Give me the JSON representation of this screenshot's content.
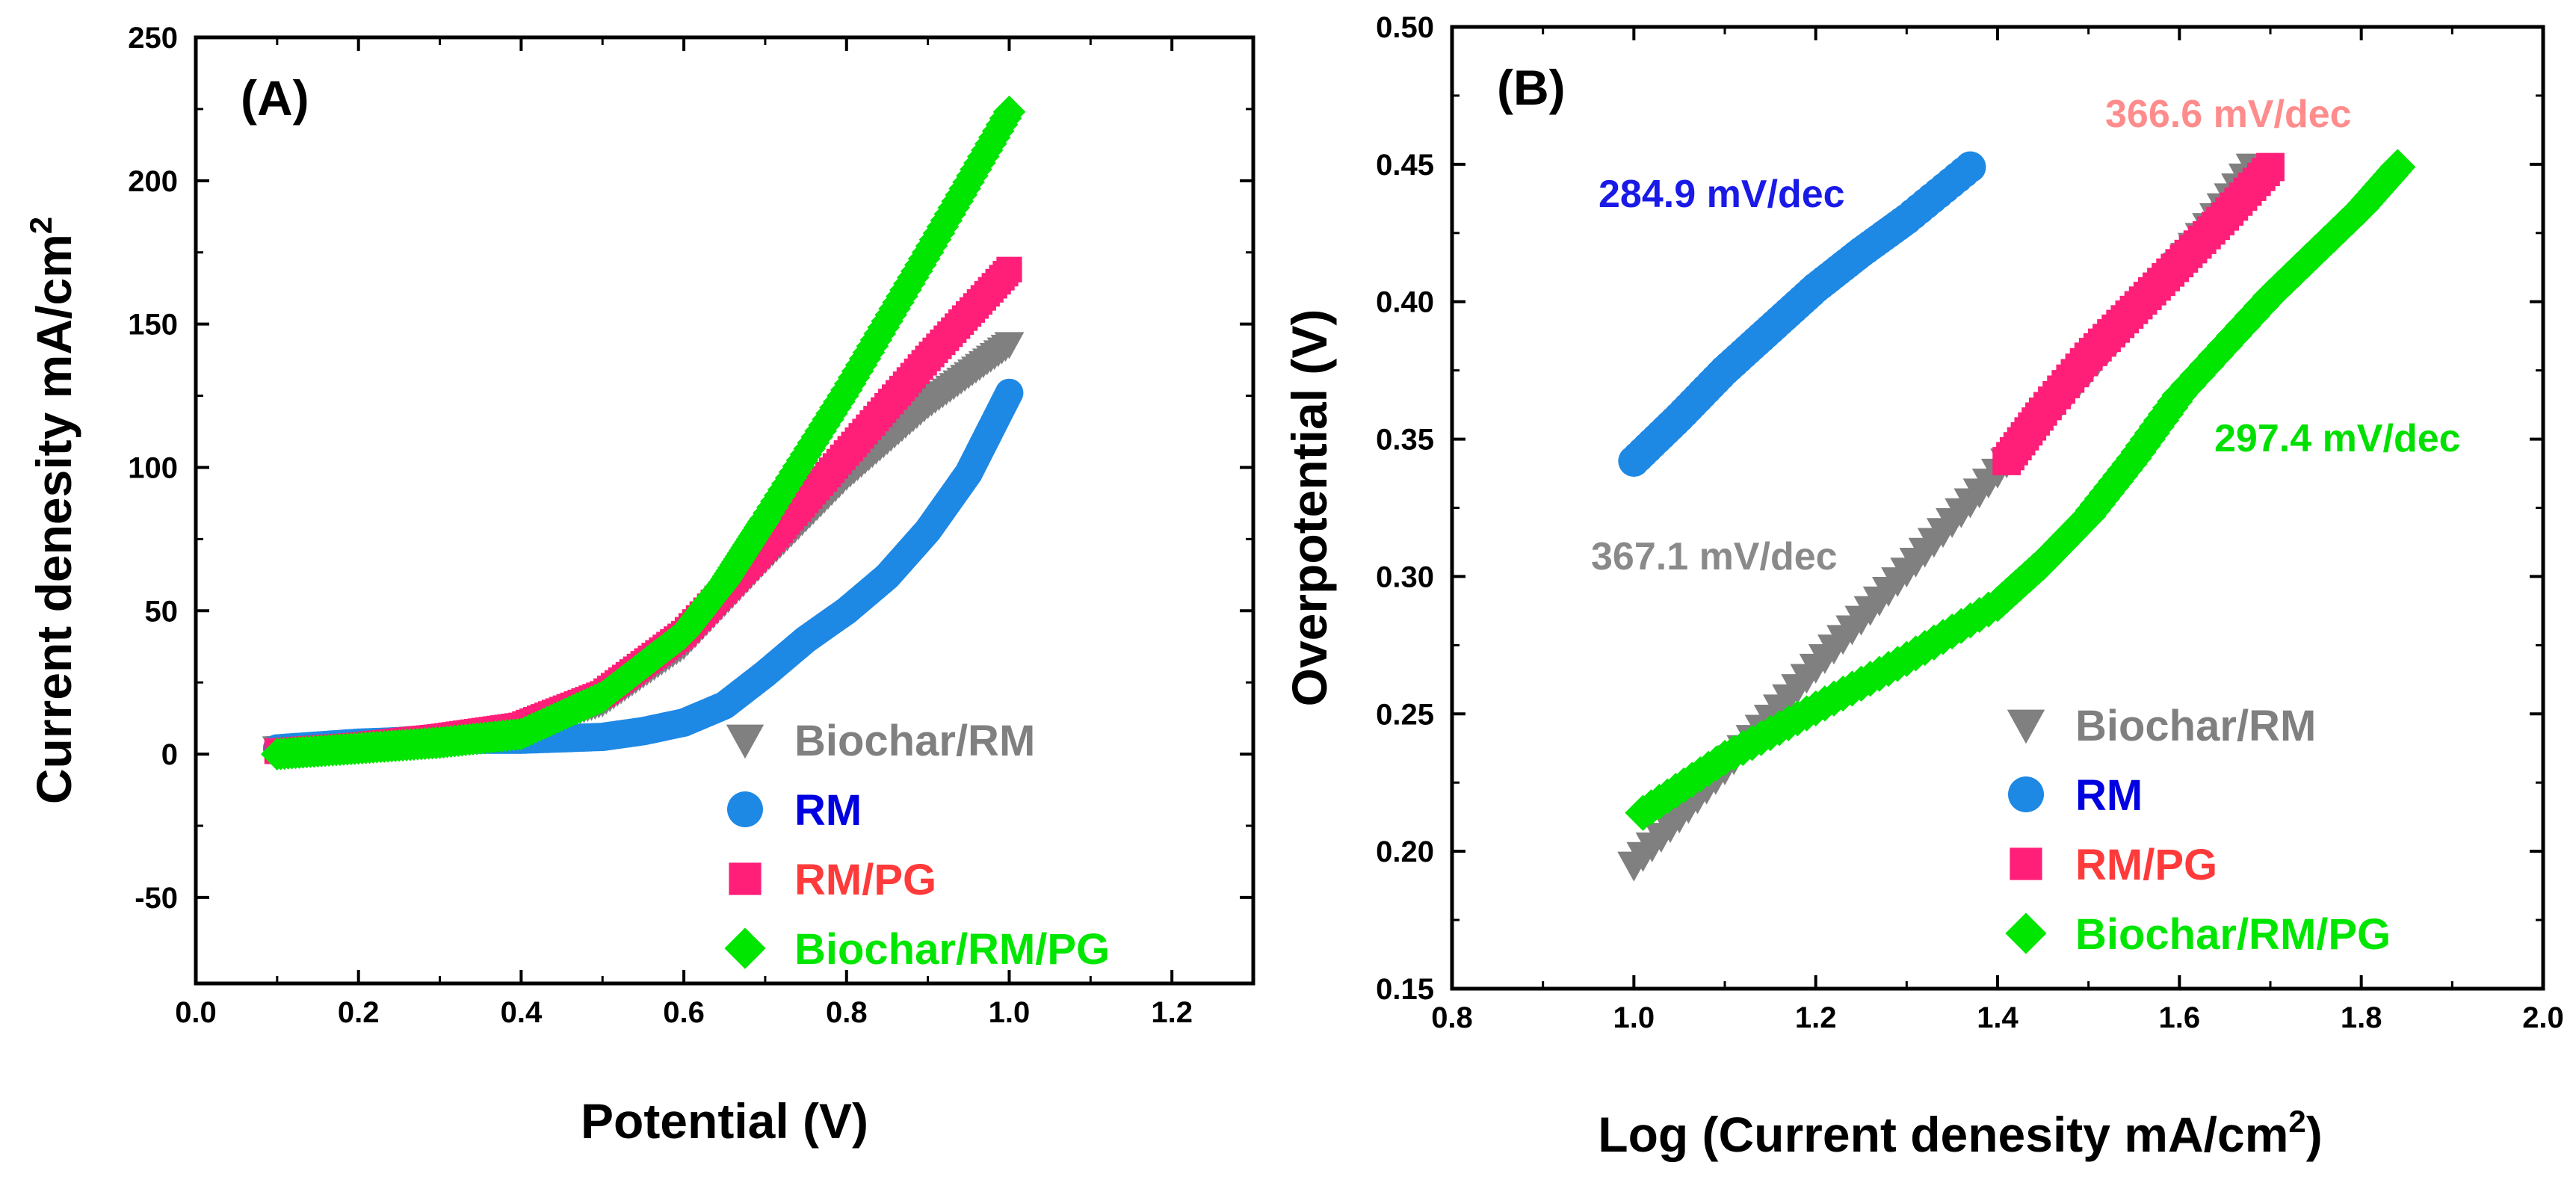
{
  "colors": {
    "biochar_rm": "#808080",
    "rm_marker": "#1e88e5",
    "rm_label": "#0000e0",
    "rm_pg_marker": "#ff1e78",
    "rm_pg_label": "#ff3a3a",
    "biochar_rm_pg": "#00e600",
    "ann_blue": "#1a1ae6",
    "ann_pink": "#ff8c8c",
    "ann_gray": "#8a8a8a",
    "ann_green": "#00e000"
  },
  "chart_data": [
    {
      "panel": "(A)",
      "type": "line",
      "xlabel": "Potential (V)",
      "ylabel": "Current denesity mA/cm",
      "ylabel_sup": "2",
      "xlim": [
        0.0,
        1.3
      ],
      "ylim": [
        -80,
        250
      ],
      "xticks": [
        "0.0",
        "0.2",
        "0.4",
        "0.6",
        "0.8",
        "1.0",
        "1.2"
      ],
      "yticks": [
        "-50",
        "0",
        "50",
        "100",
        "150",
        "200",
        "250"
      ],
      "legend_position": "bottom-right",
      "series": [
        {
          "name": "Biochar/RM",
          "marker": "triangle-down",
          "x": [
            0.1,
            0.2,
            0.3,
            0.4,
            0.5,
            0.6,
            0.7,
            0.8,
            0.9,
            1.0
          ],
          "y": [
            2,
            4,
            6,
            9,
            18,
            38,
            68,
            97,
            122,
            143
          ]
        },
        {
          "name": "RM",
          "marker": "circle",
          "x": [
            0.1,
            0.2,
            0.3,
            0.4,
            0.5,
            0.55,
            0.6,
            0.65,
            0.7,
            0.75,
            0.8,
            0.85,
            0.9,
            0.95,
            1.0
          ],
          "y": [
            2,
            4,
            5,
            5,
            6,
            8,
            11,
            17,
            28,
            40,
            50,
            62,
            78,
            98,
            126
          ]
        },
        {
          "name": "RM/PG",
          "marker": "square",
          "x": [
            0.1,
            0.2,
            0.3,
            0.4,
            0.5,
            0.6,
            0.7,
            0.8,
            0.9,
            1.0
          ],
          "y": [
            1,
            3,
            6,
            10,
            21,
            42,
            72,
            105,
            138,
            169
          ]
        },
        {
          "name": "Biochar/RM/PG",
          "marker": "diamond",
          "x": [
            0.1,
            0.2,
            0.3,
            0.4,
            0.5,
            0.6,
            0.65,
            0.7,
            0.8,
            0.9,
            1.0
          ],
          "y": [
            0,
            2,
            4,
            7,
            20,
            42,
            60,
            82,
            127,
            175,
            224
          ]
        }
      ]
    },
    {
      "panel": "(B)",
      "type": "scatter",
      "xlabel": "Log (Current denesity mA/cm",
      "xlabel_sup": "2",
      "xlabel_end": ")",
      "ylabel": "Overpotential (V)",
      "xlim": [
        0.8,
        2.0
      ],
      "ylim": [
        0.15,
        0.5
      ],
      "xticks": [
        "0.8",
        "1.0",
        "1.2",
        "1.4",
        "1.6",
        "1.8",
        "2.0"
      ],
      "yticks": [
        "0.15",
        "0.20",
        "0.25",
        "0.30",
        "0.35",
        "0.40",
        "0.45",
        "0.50"
      ],
      "legend_position": "bottom-right",
      "series": [
        {
          "name": "Biochar/RM",
          "marker": "triangle-down",
          "x": [
            1.0,
            1.1,
            1.2,
            1.3,
            1.4,
            1.5,
            1.6,
            1.68
          ],
          "y": [
            0.195,
            0.23,
            0.267,
            0.302,
            0.338,
            0.375,
            0.413,
            0.449
          ]
        },
        {
          "name": "RM",
          "marker": "circle",
          "x": [
            1.0,
            1.05,
            1.1,
            1.15,
            1.2,
            1.25,
            1.3,
            1.37
          ],
          "y": [
            0.342,
            0.358,
            0.375,
            0.39,
            0.405,
            0.418,
            0.43,
            0.449
          ]
        },
        {
          "name": "RM/PG",
          "marker": "square",
          "x": [
            1.41,
            1.45,
            1.5,
            1.55,
            1.6,
            1.65,
            1.7
          ],
          "y": [
            0.342,
            0.36,
            0.38,
            0.397,
            0.414,
            0.431,
            0.449
          ]
        },
        {
          "name": "Biochar/RM/PG",
          "marker": "diamond",
          "x": [
            1.01,
            1.1,
            1.2,
            1.3,
            1.4,
            1.45,
            1.5,
            1.55,
            1.6,
            1.7,
            1.8,
            1.84
          ],
          "y": [
            0.214,
            0.234,
            0.252,
            0.27,
            0.29,
            0.305,
            0.322,
            0.343,
            0.366,
            0.402,
            0.434,
            0.449
          ]
        }
      ],
      "annotations": [
        {
          "text": "284.9 mV/dec",
          "series": "RM"
        },
        {
          "text": "366.6 mV/dec",
          "series": "RM/PG"
        },
        {
          "text": "297.4 mV/dec",
          "series": "Biochar/RM/PG"
        },
        {
          "text": "367.1 mV/dec",
          "series": "Biochar/RM"
        }
      ]
    }
  ]
}
